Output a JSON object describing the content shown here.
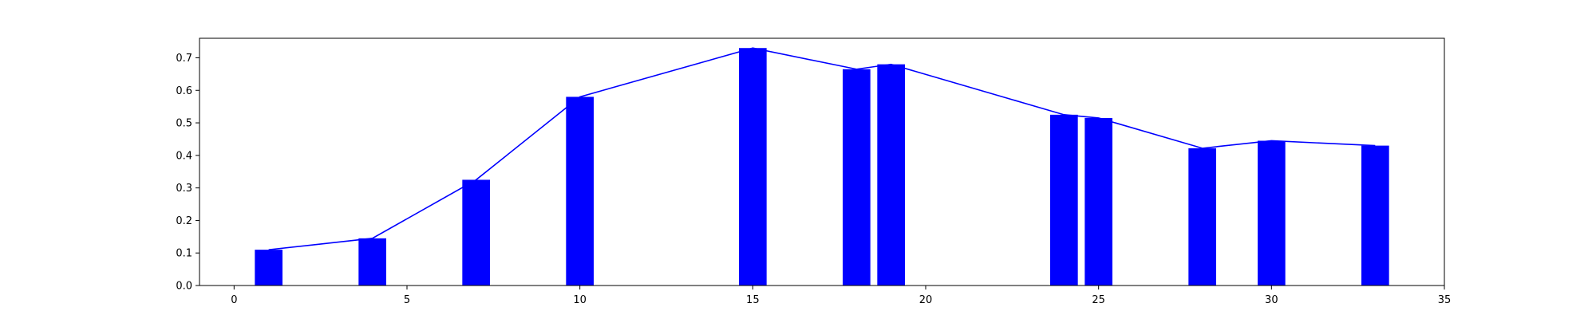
{
  "chart_data": {
    "type": "bar",
    "title": "",
    "xlabel": "",
    "ylabel": "",
    "xlim": [
      -1,
      35
    ],
    "ylim": [
      0,
      0.76
    ],
    "xticks": [
      0,
      5,
      10,
      15,
      20,
      25,
      30,
      35
    ],
    "xtick_labels": [
      "0",
      "5",
      "10",
      "15",
      "20",
      "25",
      "30",
      "35"
    ],
    "yticks": [
      0.0,
      0.1,
      0.2,
      0.3,
      0.4,
      0.5,
      0.6,
      0.7
    ],
    "ytick_labels": [
      "0.0",
      "0.1",
      "0.2",
      "0.3",
      "0.4",
      "0.5",
      "0.6",
      "0.7"
    ],
    "grid": false,
    "legend": "none",
    "bar_width": 0.8,
    "color": "#0000ff",
    "x": [
      1,
      4,
      7,
      10,
      15,
      18,
      19,
      24,
      25,
      28,
      30,
      33
    ],
    "values": [
      0.11,
      0.145,
      0.325,
      0.58,
      0.73,
      0.665,
      0.68,
      0.525,
      0.515,
      0.422,
      0.445,
      0.43
    ],
    "line": {
      "x": [
        1,
        4,
        7,
        10,
        15,
        18,
        19,
        24,
        25,
        28,
        30,
        33
      ],
      "y": [
        0.11,
        0.145,
        0.325,
        0.58,
        0.73,
        0.665,
        0.68,
        0.525,
        0.515,
        0.422,
        0.445,
        0.43
      ],
      "color": "#0000ff"
    }
  }
}
